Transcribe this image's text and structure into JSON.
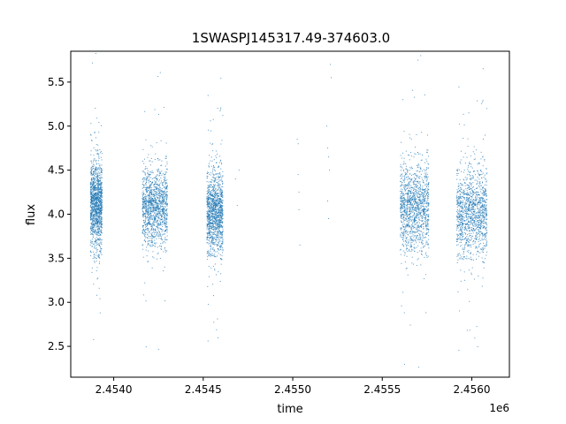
{
  "chart_data": {
    "type": "scatter",
    "title": "1SWASPJ145317.49-374603.0",
    "xlabel": "time",
    "ylabel": "flux",
    "x_offset_label": "1e6",
    "xlim": [
      2453760,
      2456210
    ],
    "ylim": [
      2.15,
      5.85
    ],
    "xticks": [
      2.454,
      2.4545,
      2.455,
      2.4555,
      2.456
    ],
    "xtick_labels": [
      "2.4540",
      "2.4545",
      "2.4550",
      "2.4555",
      "2.4560"
    ],
    "yticks": [
      2.5,
      3.0,
      3.5,
      4.0,
      4.5,
      5.0,
      5.5
    ],
    "ytick_labels": [
      "2.5",
      "3.0",
      "3.5",
      "4.0",
      "4.5",
      "5.0",
      "5.5"
    ],
    "grid": false,
    "marker_color": "#1f77b4",
    "seasons": [
      {
        "x_range": [
          2453870,
          2453935
        ],
        "center": 4.1,
        "spread": 0.45
      },
      {
        "x_range": [
          2454160,
          2454300
        ],
        "center": 4.08,
        "spread": 0.4
      },
      {
        "x_range": [
          2454520,
          2454610
        ],
        "center": 4.02,
        "spread": 0.42
      },
      {
        "x_range": [
          2455600,
          2455760
        ],
        "center": 4.08,
        "spread": 0.45
      },
      {
        "x_range": [
          2455915,
          2456085
        ],
        "center": 4.02,
        "spread": 0.45
      }
    ],
    "sparse_points": [
      {
        "x": 2454680,
        "y": 4.4
      },
      {
        "x": 2454690,
        "y": 4.1
      },
      {
        "x": 2454700,
        "y": 4.5
      },
      {
        "x": 2455025,
        "y": 4.85
      },
      {
        "x": 2455030,
        "y": 4.8
      },
      {
        "x": 2455030,
        "y": 4.45
      },
      {
        "x": 2455035,
        "y": 4.05
      },
      {
        "x": 2455040,
        "y": 3.65
      },
      {
        "x": 2455035,
        "y": 4.25
      },
      {
        "x": 2455210,
        "y": 5.7
      },
      {
        "x": 2455215,
        "y": 5.55
      },
      {
        "x": 2455195,
        "y": 4.75
      },
      {
        "x": 2455200,
        "y": 4.65
      },
      {
        "x": 2455205,
        "y": 4.5
      },
      {
        "x": 2455195,
        "y": 4.15
      },
      {
        "x": 2455200,
        "y": 3.95
      },
      {
        "x": 2455190,
        "y": 5.0
      }
    ]
  }
}
